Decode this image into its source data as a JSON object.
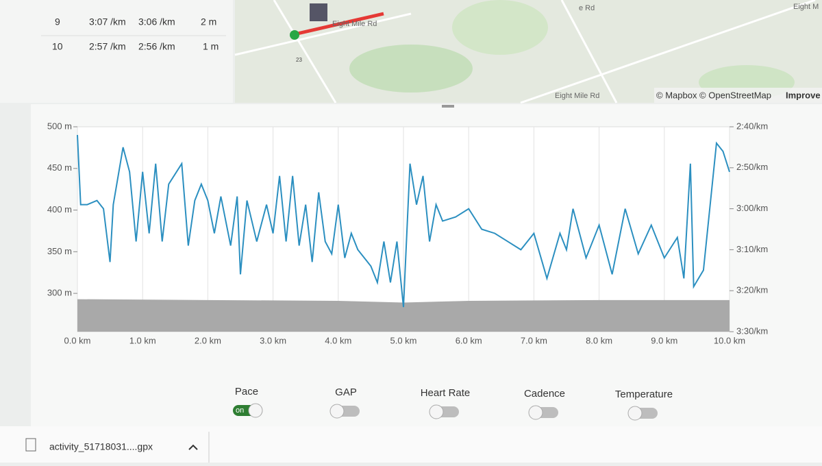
{
  "splits": {
    "rows": [
      [
        "9",
        "3:07 /km",
        "3:06 /km",
        "2 m"
      ],
      [
        "10",
        "2:57 /km",
        "2:56 /km",
        "1 m"
      ]
    ]
  },
  "map": {
    "road_1": "Eight Mile Rd",
    "road_2": "Eight Mile Rd",
    "road_3": "Eight M",
    "road_4": "e Rd",
    "route_marker": "23",
    "attribution": "© Mapbox © OpenStreetMap",
    "improve": "Improve"
  },
  "chart_data": {
    "type": "line",
    "x": [
      0,
      0.05,
      0.15,
      0.3,
      0.4,
      0.5,
      0.55,
      0.7,
      0.8,
      0.9,
      1.0,
      1.1,
      1.2,
      1.3,
      1.4,
      1.6,
      1.7,
      1.8,
      1.9,
      2.0,
      2.1,
      2.2,
      2.35,
      2.45,
      2.5,
      2.6,
      2.75,
      2.9,
      3.0,
      3.1,
      3.2,
      3.3,
      3.4,
      3.5,
      3.6,
      3.7,
      3.8,
      3.9,
      4.0,
      4.1,
      4.2,
      4.3,
      4.5,
      4.6,
      4.7,
      4.8,
      4.9,
      5.0,
      5.1,
      5.2,
      5.3,
      5.4,
      5.5,
      5.6,
      5.8,
      6.0,
      6.2,
      6.4,
      6.6,
      6.8,
      7.0,
      7.2,
      7.4,
      7.5,
      7.6,
      7.8,
      8.0,
      8.2,
      8.4,
      8.6,
      8.8,
      9.0,
      9.2,
      9.3,
      9.4,
      9.45,
      9.6,
      9.8,
      9.9,
      10.0
    ],
    "series": [
      {
        "color": "#2b8fc0",
        "axis": "y2",
        "values": [
          162,
          179,
          179,
          178,
          180,
          193,
          179,
          165,
          171,
          188,
          171,
          186,
          169,
          188,
          174,
          169,
          189,
          178,
          174,
          178,
          186,
          177,
          189,
          177,
          196,
          178,
          188,
          179,
          186,
          172,
          188,
          172,
          189,
          179,
          193,
          176,
          188,
          191,
          179,
          192,
          186,
          190,
          194,
          198,
          188,
          198,
          188,
          204,
          169,
          179,
          172,
          188,
          179,
          183,
          182,
          180,
          185,
          186,
          188,
          190,
          186,
          197,
          186,
          190,
          180,
          192,
          184,
          196,
          180,
          191,
          184,
          192,
          187,
          197,
          169,
          199,
          195,
          164,
          166,
          171
        ]
      }
    ],
    "elevation": {
      "color": "#a9a9a9",
      "x": [
        0,
        2,
        4,
        5,
        6,
        8,
        10
      ],
      "values": [
        293,
        292,
        291,
        289,
        291,
        292,
        292
      ]
    },
    "xlim": [
      0,
      10
    ],
    "xticks": [
      {
        "value": 0,
        "label": "0.0 km"
      },
      {
        "value": 1,
        "label": "1.0 km"
      },
      {
        "value": 2,
        "label": "2.0 km"
      },
      {
        "value": 3,
        "label": "3.0 km"
      },
      {
        "value": 4,
        "label": "4.0 km"
      },
      {
        "value": 5,
        "label": "5.0 km"
      },
      {
        "value": 6,
        "label": "6.0 km"
      },
      {
        "value": 7,
        "label": "7.0 km"
      },
      {
        "value": 8,
        "label": "8.0 km"
      },
      {
        "value": 9,
        "label": "9.0 km"
      },
      {
        "value": 10,
        "label": "10.0 km"
      }
    ],
    "ylim": [
      254,
      500
    ],
    "yticks": [
      {
        "value": 300,
        "label": "300 m"
      },
      {
        "value": 350,
        "label": "350 m"
      },
      {
        "value": 400,
        "label": "400 m"
      },
      {
        "value": 450,
        "label": "450 m"
      },
      {
        "value": 500,
        "label": "500 m"
      }
    ],
    "y2lim": [
      210,
      160
    ],
    "y2ticks": [
      {
        "value": 160,
        "label": "2:40/km"
      },
      {
        "value": 170,
        "label": "2:50/km"
      },
      {
        "value": 180,
        "label": "3:00/km"
      },
      {
        "value": 190,
        "label": "3:10/km"
      },
      {
        "value": 200,
        "label": "3:20/km"
      },
      {
        "value": 210,
        "label": "3:30/km"
      }
    ],
    "grid": true
  },
  "toggles": [
    {
      "label": "Pace",
      "state": "on"
    },
    {
      "label": "GAP"
    },
    {
      "label": "Heart Rate"
    },
    {
      "label": "Cadence"
    },
    {
      "label": "Temperature"
    }
  ],
  "download": {
    "file": "activity_51718031....gpx"
  }
}
